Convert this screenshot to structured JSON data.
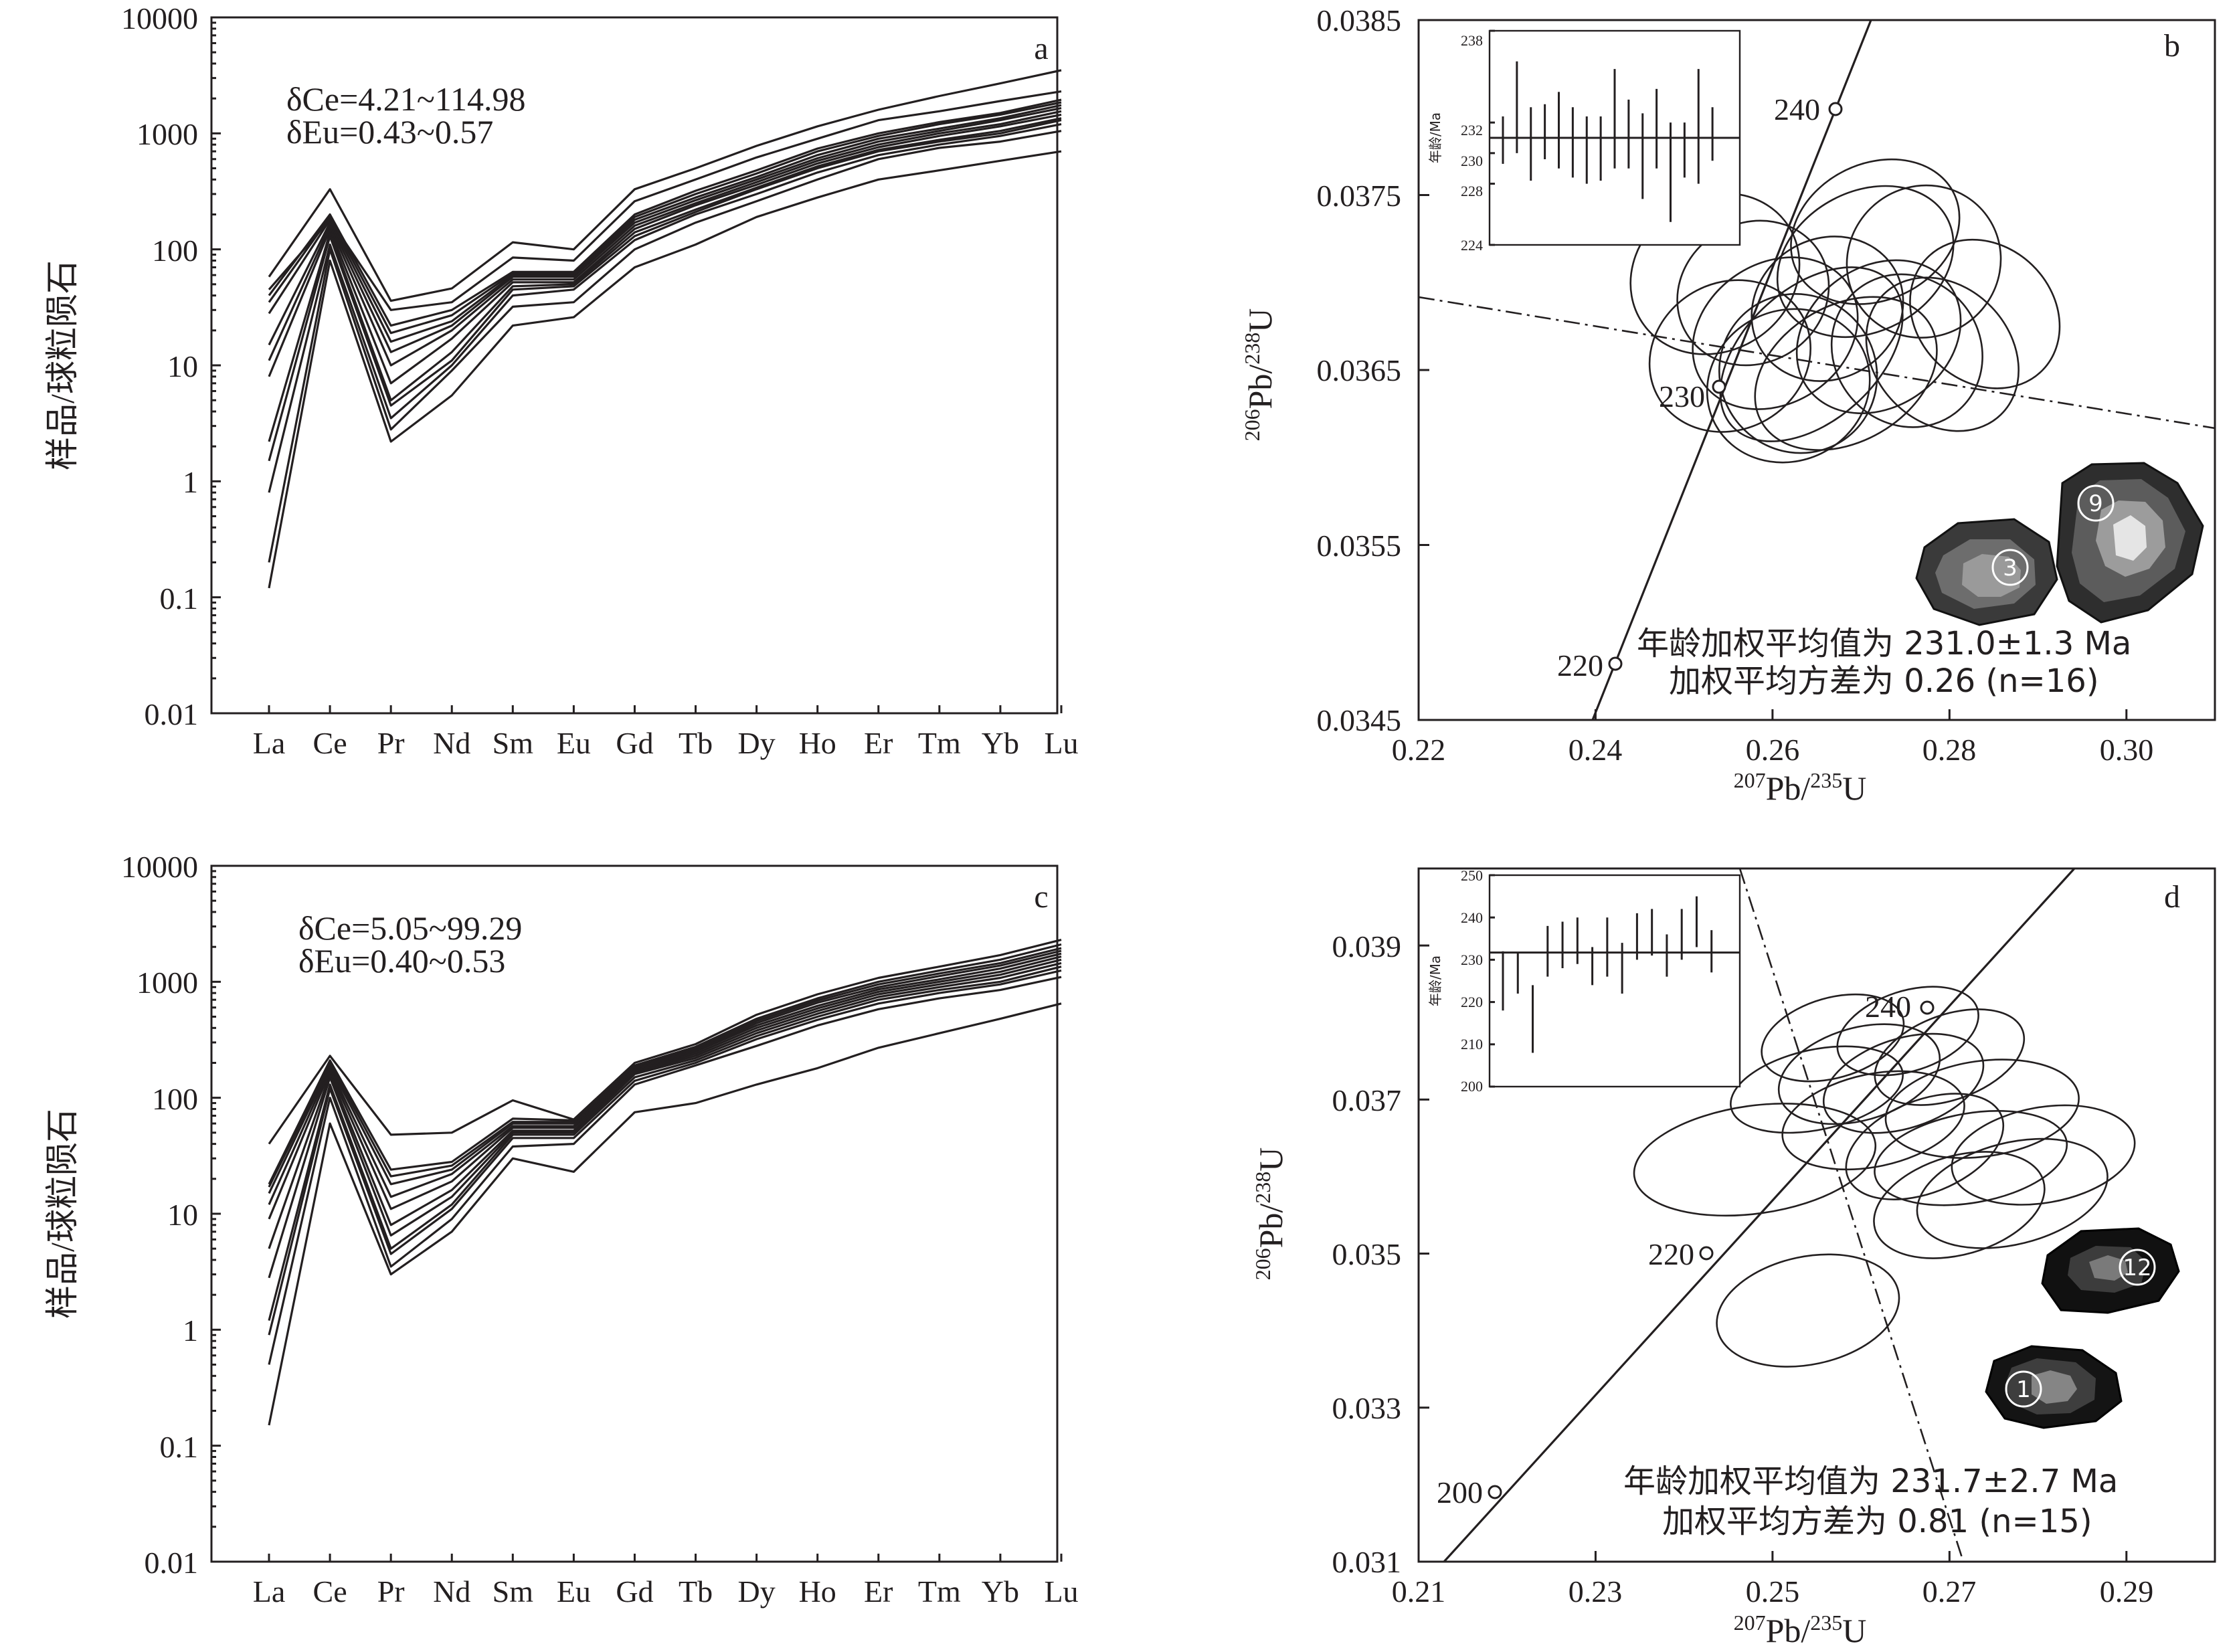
{
  "chart_data": [
    {
      "id": "a",
      "type": "line",
      "panel_label": "a",
      "ylabel": "样品/球粒陨石",
      "yscale": "log",
      "ylim": [
        0.01,
        10000
      ],
      "yticks": [
        "10000",
        "1000",
        "100",
        "10",
        "1",
        "0.1",
        "0.01"
      ],
      "categories": [
        "La",
        "Ce",
        "Pr",
        "Nd",
        "Sm",
        "Eu",
        "Gd",
        "Tb",
        "Dy",
        "Ho",
        "Er",
        "Tm",
        "Yb",
        "Lu"
      ],
      "annotations": [
        "δCe=4.21~114.98",
        "δEu=0.43~0.57"
      ],
      "series": [
        {
          "values": [
            0.12,
            80,
            2.2,
            5.5,
            22,
            26,
            70,
            110,
            190,
            280,
            400,
            480,
            580,
            700
          ]
        },
        {
          "values": [
            0.2,
            100,
            2.8,
            9,
            32,
            35,
            100,
            170,
            260,
            400,
            600,
            750,
            850,
            1050
          ]
        },
        {
          "values": [
            0.8,
            110,
            3.5,
            10,
            40,
            45,
            120,
            200,
            300,
            460,
            650,
            800,
            950,
            1200
          ]
        },
        {
          "values": [
            1.5,
            130,
            4.5,
            11,
            45,
            48,
            130,
            210,
            330,
            500,
            700,
            850,
            1000,
            1300
          ]
        },
        {
          "values": [
            2.2,
            140,
            5,
            13,
            48,
            50,
            140,
            220,
            340,
            520,
            720,
            880,
            1050,
            1350
          ]
        },
        {
          "values": [
            8,
            150,
            7,
            17,
            52,
            52,
            150,
            240,
            360,
            550,
            760,
            950,
            1150,
            1450
          ]
        },
        {
          "values": [
            11,
            160,
            10,
            20,
            55,
            55,
            160,
            250,
            380,
            580,
            800,
            1000,
            1200,
            1550
          ]
        },
        {
          "values": [
            15,
            170,
            13,
            22,
            58,
            58,
            170,
            265,
            400,
            610,
            850,
            1050,
            1300,
            1650
          ]
        },
        {
          "values": [
            28,
            180,
            16,
            24,
            60,
            60,
            180,
            280,
            420,
            650,
            900,
            1100,
            1350,
            1750
          ]
        },
        {
          "values": [
            35,
            190,
            19,
            27,
            62,
            62,
            190,
            300,
            450,
            700,
            950,
            1200,
            1450,
            1850
          ]
        },
        {
          "values": [
            40,
            200,
            22,
            30,
            64,
            64,
            200,
            320,
            480,
            740,
            1000,
            1250,
            1500,
            1950
          ]
        },
        {
          "values": [
            45,
            180,
            30,
            35,
            85,
            80,
            260,
            400,
            620,
            900,
            1300,
            1550,
            1900,
            2300
          ]
        },
        {
          "values": [
            58,
            330,
            36,
            46,
            115,
            100,
            330,
            500,
            780,
            1150,
            1600,
            2100,
            2700,
            3500
          ]
        }
      ]
    },
    {
      "id": "b",
      "type": "scatter",
      "panel_label": "b",
      "xlabel": "207Pb/235U",
      "ylabel": "206Pb/238U",
      "xlim": [
        0.22,
        0.31
      ],
      "ylim": [
        0.0345,
        0.0385
      ],
      "xticks": [
        "0.22",
        "0.24",
        "0.26",
        "0.28",
        "0.30"
      ],
      "yticks": [
        "0.0385",
        "0.0375",
        "0.0365",
        "0.0355",
        "0.0345"
      ],
      "concordia_ages": [
        "240",
        "230",
        "220"
      ],
      "annotations": [
        "年龄加权平均值为 231.0±1.3 Ma",
        "加权平均方差为 0.26 (n=16)"
      ],
      "grain_labels": [
        "3",
        "9"
      ],
      "inset": {
        "ylabel": "年龄/Ma",
        "ylim": [
          224,
          238
        ],
        "yticks": [
          "238",
          "232",
          "230",
          "228",
          "224"
        ],
        "mean": 231.0,
        "ages": [
          [
            229.3,
            232.4
          ],
          [
            230.0,
            236.0
          ],
          [
            228.2,
            233.0
          ],
          [
            229.6,
            233.2
          ],
          [
            229.0,
            234.0
          ],
          [
            228.4,
            233.0
          ],
          [
            228.0,
            232.4
          ],
          [
            228.2,
            232.4
          ],
          [
            229.0,
            235.5
          ],
          [
            229.0,
            233.5
          ],
          [
            227.0,
            232.6
          ],
          [
            229.0,
            234.2
          ],
          [
            225.5,
            232.0
          ],
          [
            228.4,
            232.0
          ],
          [
            228.0,
            235.5
          ],
          [
            229.5,
            233.0
          ]
        ]
      },
      "ellipses": [
        {
          "cx": 0.2535,
          "cy": 0.03705,
          "rx": 0.018,
          "ry": 0.00044,
          "angle": 34
        },
        {
          "cx": 0.2552,
          "cy": 0.03658,
          "rx": 0.017,
          "ry": 0.00042,
          "angle": 30
        },
        {
          "cx": 0.2629,
          "cy": 0.03648,
          "rx": 0.016,
          "ry": 0.00046,
          "angle": 38
        },
        {
          "cx": 0.2662,
          "cy": 0.03685,
          "rx": 0.016,
          "ry": 0.0004,
          "angle": 32
        },
        {
          "cx": 0.2705,
          "cy": 0.03712,
          "rx": 0.019,
          "ry": 0.0004,
          "angle": 28
        },
        {
          "cx": 0.272,
          "cy": 0.03669,
          "rx": 0.018,
          "ry": 0.0004,
          "angle": 36
        },
        {
          "cx": 0.2644,
          "cy": 0.03659,
          "rx": 0.022,
          "ry": 0.00038,
          "angle": 42
        },
        {
          "cx": 0.2618,
          "cy": 0.03641,
          "rx": 0.017,
          "ry": 0.00043,
          "angle": 26
        },
        {
          "cx": 0.2752,
          "cy": 0.03661,
          "rx": 0.015,
          "ry": 0.00045,
          "angle": 40
        },
        {
          "cx": 0.2792,
          "cy": 0.03659,
          "rx": 0.014,
          "ry": 0.00048,
          "angle": 44
        },
        {
          "cx": 0.2683,
          "cy": 0.03648,
          "rx": 0.02,
          "ry": 0.00039,
          "angle": 30
        },
        {
          "cx": 0.2603,
          "cy": 0.03671,
          "rx": 0.018,
          "ry": 0.0004,
          "angle": 34
        },
        {
          "cx": 0.284,
          "cy": 0.03682,
          "rx": 0.014,
          "ry": 0.00046,
          "angle": 46
        },
        {
          "cx": 0.2771,
          "cy": 0.03712,
          "rx": 0.016,
          "ry": 0.00043,
          "angle": 36
        },
        {
          "cx": 0.2716,
          "cy": 0.03729,
          "rx": 0.018,
          "ry": 0.00039,
          "angle": 26
        },
        {
          "cx": 0.2578,
          "cy": 0.03694,
          "rx": 0.016,
          "ry": 0.0004,
          "angle": 32
        }
      ]
    },
    {
      "id": "c",
      "type": "line",
      "panel_label": "c",
      "ylabel": "样品/球粒陨石",
      "yscale": "log",
      "ylim": [
        0.01,
        10000
      ],
      "yticks": [
        "10000",
        "1000",
        "100",
        "10",
        "1",
        "0.1",
        "0.01"
      ],
      "categories": [
        "La",
        "Ce",
        "Pr",
        "Nd",
        "Sm",
        "Eu",
        "Gd",
        "Tb",
        "Dy",
        "Ho",
        "Er",
        "Tm",
        "Yb",
        "Lu"
      ],
      "annotations": [
        "δCe=5.05~99.29",
        "δEu=0.40~0.53"
      ],
      "series": [
        {
          "values": [
            0.15,
            60,
            3,
            7,
            30,
            23,
            75,
            90,
            130,
            180,
            270,
            360,
            480,
            650
          ]
        },
        {
          "values": [
            0.5,
            100,
            3.5,
            9,
            38,
            40,
            130,
            190,
            280,
            420,
            580,
            720,
            850,
            1100
          ]
        },
        {
          "values": [
            0.9,
            120,
            4.5,
            11,
            45,
            45,
            140,
            200,
            320,
            470,
            650,
            800,
            950,
            1250
          ]
        },
        {
          "values": [
            1.2,
            130,
            5,
            12,
            48,
            48,
            150,
            210,
            340,
            500,
            700,
            850,
            1000,
            1350
          ]
        },
        {
          "values": [
            2.8,
            150,
            6.5,
            14,
            50,
            50,
            160,
            220,
            360,
            530,
            740,
            900,
            1080,
            1450
          ]
        },
        {
          "values": [
            5,
            160,
            8,
            16,
            52,
            52,
            165,
            230,
            380,
            560,
            780,
            950,
            1150,
            1550
          ]
        },
        {
          "values": [
            9,
            170,
            11,
            19,
            55,
            55,
            170,
            240,
            400,
            590,
            820,
            1000,
            1220,
            1650
          ]
        },
        {
          "values": [
            12,
            180,
            14,
            22,
            57,
            57,
            175,
            250,
            420,
            620,
            860,
            1050,
            1300,
            1750
          ]
        },
        {
          "values": [
            15,
            190,
            18,
            24,
            60,
            60,
            180,
            255,
            440,
            660,
            900,
            1120,
            1380,
            1850
          ]
        },
        {
          "values": [
            17,
            200,
            21,
            26,
            62,
            62,
            185,
            265,
            460,
            690,
            950,
            1180,
            1450,
            1950
          ]
        },
        {
          "values": [
            18,
            210,
            24,
            28,
            66,
            64,
            190,
            275,
            480,
            720,
            1000,
            1250,
            1550,
            2100
          ]
        },
        {
          "values": [
            40,
            230,
            48,
            50,
            95,
            65,
            200,
            290,
            520,
            780,
            1080,
            1350,
            1700,
            2300
          ]
        }
      ]
    },
    {
      "id": "d",
      "type": "scatter",
      "panel_label": "d",
      "xlabel": "207Pb/235U",
      "ylabel": "206Pb/238U",
      "xlim": [
        0.21,
        0.3
      ],
      "ylim": [
        0.031,
        0.04
      ],
      "xticks": [
        "0.21",
        "0.23",
        "0.25",
        "0.27",
        "0.29"
      ],
      "yticks": [
        "0.039",
        "0.037",
        "0.035",
        "0.033",
        "0.031"
      ],
      "concordia_ages": [
        "240",
        "220",
        "200"
      ],
      "annotations": [
        "年龄加权平均值为 231.7±2.7 Ma",
        "加权平均方差为 0.81 (n=15)"
      ],
      "grain_labels": [
        "12",
        "1"
      ],
      "inset": {
        "ylabel": "年龄/Ma",
        "ylim": [
          200,
          250
        ],
        "yticks": [
          "250",
          "240",
          "230",
          "220",
          "210",
          "200"
        ],
        "mean": 231.7,
        "ages": [
          [
            218.0,
            232.0
          ],
          [
            222.0,
            231.5
          ],
          [
            208.0,
            224.0
          ],
          [
            226.0,
            238.0
          ],
          [
            228.0,
            239.0
          ],
          [
            229.0,
            240.0
          ],
          [
            224.0,
            233.0
          ],
          [
            226.0,
            240.0
          ],
          [
            222.0,
            234.0
          ],
          [
            230.0,
            241.0
          ],
          [
            231.0,
            242.0
          ],
          [
            226.0,
            236.0
          ],
          [
            230.0,
            242.0
          ],
          [
            233.0,
            245.0
          ],
          [
            227.0,
            237.0
          ]
        ]
      },
      "ellipses": [
        {
          "cx": 0.254,
          "cy": 0.03426,
          "rx": 0.019,
          "ry": 0.0007,
          "angle": 12
        },
        {
          "cx": 0.248,
          "cy": 0.03622,
          "rx": 0.025,
          "ry": 0.0007,
          "angle": 8
        },
        {
          "cx": 0.2598,
          "cy": 0.03733,
          "rx": 0.017,
          "ry": 0.0006,
          "angle": 16
        },
        {
          "cx": 0.2648,
          "cy": 0.03721,
          "rx": 0.017,
          "ry": 0.00058,
          "angle": 18
        },
        {
          "cx": 0.27,
          "cy": 0.03755,
          "rx": 0.016,
          "ry": 0.00055,
          "angle": 20
        },
        {
          "cx": 0.2614,
          "cy": 0.03673,
          "rx": 0.019,
          "ry": 0.0006,
          "angle": 12
        },
        {
          "cx": 0.2724,
          "cy": 0.03624,
          "rx": 0.02,
          "ry": 0.00058,
          "angle": 10
        },
        {
          "cx": 0.2771,
          "cy": 0.03578,
          "rx": 0.02,
          "ry": 0.00066,
          "angle": 14
        },
        {
          "cx": 0.2672,
          "cy": 0.03639,
          "rx": 0.017,
          "ry": 0.0006,
          "angle": 22
        },
        {
          "cx": 0.2568,
          "cy": 0.0378,
          "rx": 0.015,
          "ry": 0.00052,
          "angle": 16
        },
        {
          "cx": 0.2737,
          "cy": 0.03688,
          "rx": 0.02,
          "ry": 0.00062,
          "angle": 8
        },
        {
          "cx": 0.2653,
          "cy": 0.03789,
          "rx": 0.015,
          "ry": 0.00052,
          "angle": 18
        },
        {
          "cx": 0.2806,
          "cy": 0.03628,
          "rx": 0.019,
          "ry": 0.00062,
          "angle": 10
        },
        {
          "cx": 0.255,
          "cy": 0.03713,
          "rx": 0.018,
          "ry": 0.00052,
          "angle": 12
        },
        {
          "cx": 0.2711,
          "cy": 0.03563,
          "rx": 0.018,
          "ry": 0.00064,
          "angle": 16
        }
      ]
    }
  ]
}
